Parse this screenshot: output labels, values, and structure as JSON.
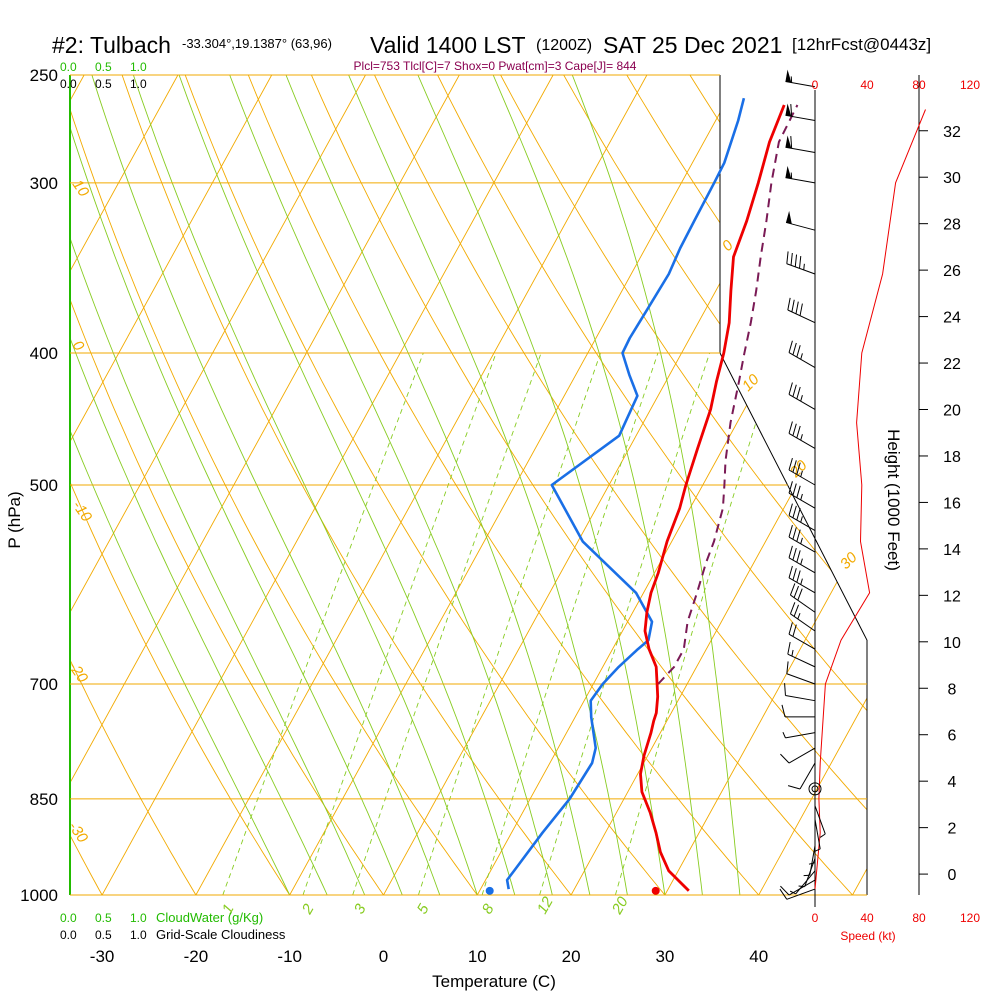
{
  "header": {
    "station": "#2: Tulbach",
    "coords": "-33.304°,19.1387° (63,96)",
    "valid": "Valid 1400 LST",
    "zulu": "(1200Z)",
    "date": "SAT 25 Dec 2021",
    "forecast": "[12hrFcst@0443z]",
    "indices": "Plcl=753 Tlcl[C]=7 Shox=0 Pwat[cm]=3 Cape[J]= 844"
  },
  "colors": {
    "temperature": "#ee0000",
    "dewpoint": "#1a6fe6",
    "parcel": "#7a1a55",
    "isotherm": "#f2aa00",
    "dry_adiabat": "#f2aa00",
    "moist_adiabat": "#88cc22",
    "mixing_ratio": "#88cc22",
    "cloudwater": "#22bb00",
    "wind_speed": "#ee0000",
    "title": "#000000"
  },
  "scales": {
    "cloudwater_top": [
      "0.0",
      "0.5",
      "1.0"
    ],
    "cloudiness_top": [
      "0.0",
      "0.5",
      "1.0"
    ],
    "cloudwater_bottom": [
      "0.0",
      "0.5",
      "1.0"
    ],
    "cloudwater_label": "CloudWater (g/Kg)",
    "cloudiness_bottom": [
      "0.0",
      "0.5",
      "1.0"
    ],
    "cloudiness_label": "Grid-Scale Cloudiness",
    "speed_ticks": [
      "0",
      "40",
      "80",
      "120"
    ],
    "speed_label": "Speed (kt)"
  },
  "chart_data": {
    "type": "line",
    "title": "",
    "xlabel": "Temperature (C)",
    "ylabel": "P (hPa)",
    "y2label": "Height (1000 Feet)",
    "xlim": [
      -35,
      55
    ],
    "ylim": [
      1000,
      250
    ],
    "y_scale": "log",
    "x_ticks": [
      "-30",
      "-20",
      "-10",
      "0",
      "10",
      "20",
      "30",
      "40"
    ],
    "pressure_ticks": [
      "250",
      "300",
      "400",
      "500",
      "700",
      "850",
      "1000"
    ],
    "pressure_tick_values": [
      250,
      300,
      400,
      500,
      700,
      850,
      1000
    ],
    "height_ticks": [
      "0",
      "2",
      "4",
      "6",
      "8",
      "10",
      "12",
      "14",
      "16",
      "18",
      "20",
      "22",
      "24",
      "26",
      "28",
      "30",
      "32"
    ],
    "dry_adiabat_labels": [
      "10",
      "0",
      "-10",
      "-20",
      "-30"
    ],
    "isotherm_labels": [
      "0",
      "10",
      "20",
      "30"
    ],
    "mixing_ratio_labels": [
      "1",
      "2",
      "3",
      "5",
      "8",
      "12",
      "20"
    ],
    "series": [
      {
        "name": "Temperature",
        "points": [
          [
            32.3,
            993
          ],
          [
            29.0,
            960
          ],
          [
            27.0,
            930
          ],
          [
            25.4,
            900
          ],
          [
            23.6,
            870
          ],
          [
            21.5,
            840
          ],
          [
            20.3,
            815
          ],
          [
            19.6,
            790
          ],
          [
            19.0,
            760
          ],
          [
            18.6,
            745
          ],
          [
            18.4,
            735
          ],
          [
            17.6,
            715
          ],
          [
            16.8,
            700
          ],
          [
            15.7,
            680
          ],
          [
            13.9,
            660
          ],
          [
            12.4,
            640
          ],
          [
            11.5,
            620
          ],
          [
            10.8,
            600
          ],
          [
            10.4,
            580
          ],
          [
            9.5,
            550
          ],
          [
            8.9,
            520
          ],
          [
            8.2,
            500
          ],
          [
            7.3,
            470
          ],
          [
            6.4,
            440
          ],
          [
            5.4,
            420
          ],
          [
            4.5,
            400
          ],
          [
            3.3,
            380
          ],
          [
            1.6,
            360
          ],
          [
            -0.1,
            340
          ],
          [
            -0.8,
            320
          ],
          [
            -1.8,
            300
          ],
          [
            -3.0,
            280
          ],
          [
            -3.6,
            263
          ]
        ]
      },
      {
        "name": "Dewpoint",
        "points": [
          [
            13.0,
            990
          ],
          [
            12.3,
            975
          ],
          [
            12.5,
            960
          ],
          [
            13.3,
            900
          ],
          [
            14.2,
            850
          ],
          [
            14.5,
            800
          ],
          [
            14.0,
            780
          ],
          [
            11.7,
            740
          ],
          [
            10.7,
            720
          ],
          [
            11.0,
            700
          ],
          [
            11.7,
            680
          ],
          [
            12.7,
            660
          ],
          [
            13.3,
            650
          ],
          [
            12.6,
            630
          ],
          [
            9.2,
            600
          ],
          [
            0.5,
            550
          ],
          [
            -6.1,
            500
          ],
          [
            -1.8,
            460
          ],
          [
            -2.2,
            430
          ],
          [
            -4.3,
            415
          ],
          [
            -6.3,
            400
          ],
          [
            -6.4,
            390
          ],
          [
            -6.2,
            370
          ],
          [
            -6.0,
            350
          ],
          [
            -6.3,
            335
          ],
          [
            -6.4,
            320
          ],
          [
            -6.5,
            300
          ],
          [
            -6.6,
            290
          ],
          [
            -7.6,
            270
          ],
          [
            -8.3,
            260
          ]
        ]
      },
      {
        "name": "Parcel",
        "points": [
          [
            16.9,
            700
          ],
          [
            17.6,
            680
          ],
          [
            17.6,
            660
          ],
          [
            16.4,
            630
          ],
          [
            15.7,
            600
          ],
          [
            14.9,
            570
          ],
          [
            14.5,
            550
          ],
          [
            13.5,
            520
          ],
          [
            12.3,
            500
          ],
          [
            11.0,
            480
          ],
          [
            9.3,
            450
          ],
          [
            7.8,
            420
          ],
          [
            6.7,
            400
          ],
          [
            5.6,
            380
          ],
          [
            4.3,
            360
          ],
          [
            2.8,
            340
          ],
          [
            1.3,
            320
          ],
          [
            -0.4,
            300
          ],
          [
            -2.0,
            280
          ],
          [
            -2.2,
            263
          ]
        ]
      },
      {
        "name": "Wind speed",
        "points": [
          [
            0,
            990
          ],
          [
            4,
            900
          ],
          [
            3,
            850
          ],
          [
            4,
            800
          ],
          [
            8,
            700
          ],
          [
            20,
            650
          ],
          [
            42,
            600
          ],
          [
            35,
            550
          ],
          [
            36,
            500
          ],
          [
            32,
            450
          ],
          [
            36,
            400
          ],
          [
            52,
            350
          ],
          [
            62,
            300
          ],
          [
            85,
            265
          ]
        ]
      }
    ],
    "surface_temperature": 33.5,
    "surface_dewpoint": 15.8,
    "wind_barbs": [
      {
        "p": 990,
        "dir": 250,
        "spd": 10
      },
      {
        "p": 975,
        "dir": 240,
        "spd": 10
      },
      {
        "p": 960,
        "dir": 220,
        "spd": 5
      },
      {
        "p": 940,
        "dir": 200,
        "spd": 5
      },
      {
        "p": 920,
        "dir": 190,
        "spd": 5
      },
      {
        "p": 900,
        "dir": 180,
        "spd": 5
      },
      {
        "p": 880,
        "dir": 170,
        "spd": 5
      },
      {
        "p": 860,
        "dir": 160,
        "spd": 5
      },
      {
        "p": 800,
        "dir": 210,
        "spd": 10
      },
      {
        "p": 780,
        "dir": 240,
        "spd": 10
      },
      {
        "p": 760,
        "dir": 260,
        "spd": 5
      },
      {
        "p": 740,
        "dir": 270,
        "spd": 10
      },
      {
        "p": 720,
        "dir": 280,
        "spd": 10
      },
      {
        "p": 700,
        "dir": 290,
        "spd": 10
      },
      {
        "p": 680,
        "dir": 295,
        "spd": 15
      },
      {
        "p": 660,
        "dir": 300,
        "spd": 20
      },
      {
        "p": 640,
        "dir": 305,
        "spd": 25
      },
      {
        "p": 620,
        "dir": 305,
        "spd": 30
      },
      {
        "p": 600,
        "dir": 300,
        "spd": 35
      },
      {
        "p": 580,
        "dir": 300,
        "spd": 35
      },
      {
        "p": 560,
        "dir": 300,
        "spd": 35
      },
      {
        "p": 540,
        "dir": 300,
        "spd": 35
      },
      {
        "p": 520,
        "dir": 300,
        "spd": 35
      },
      {
        "p": 500,
        "dir": 300,
        "spd": 35
      },
      {
        "p": 470,
        "dir": 300,
        "spd": 35
      },
      {
        "p": 440,
        "dir": 300,
        "spd": 35
      },
      {
        "p": 410,
        "dir": 300,
        "spd": 35
      },
      {
        "p": 380,
        "dir": 295,
        "spd": 40
      },
      {
        "p": 350,
        "dir": 290,
        "spd": 45
      },
      {
        "p": 325,
        "dir": 285,
        "spd": 50
      },
      {
        "p": 300,
        "dir": 280,
        "spd": 55
      },
      {
        "p": 285,
        "dir": 280,
        "spd": 60
      },
      {
        "p": 270,
        "dir": 280,
        "spd": 60
      },
      {
        "p": 255,
        "dir": 280,
        "spd": 55
      }
    ]
  }
}
